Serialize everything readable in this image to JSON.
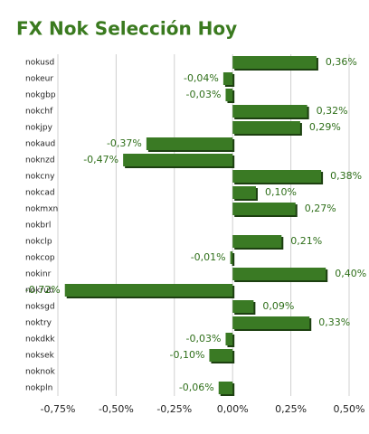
{
  "chart_data": {
    "type": "bar",
    "orientation": "horizontal",
    "title": "FX Nok Selección Hoy",
    "categories": [
      "nokusd",
      "nokeur",
      "nokgbp",
      "nokchf",
      "nokjpy",
      "nokaud",
      "noknzd",
      "nokcny",
      "nokcad",
      "nokmxn",
      "nokbrl",
      "nokclp",
      "nokcop",
      "nokinr",
      "nokrub",
      "noksgd",
      "noktry",
      "nokdkk",
      "noksek",
      "noknok",
      "nokpln"
    ],
    "values": [
      0.36,
      -0.04,
      -0.03,
      0.32,
      0.29,
      -0.37,
      -0.47,
      0.38,
      0.1,
      0.27,
      null,
      0.21,
      -0.01,
      0.4,
      -0.72,
      0.09,
      0.33,
      -0.03,
      -0.1,
      null,
      -0.06
    ],
    "value_labels": [
      "0,36%",
      "-0,04%",
      "-0,03%",
      "0,32%",
      "0,29%",
      "-0,37%",
      "-0,47%",
      "0,38%",
      "0,10%",
      "0,27%",
      null,
      "0,21%",
      "-0,01%",
      "0,40%",
      "-0,72%",
      "0,09%",
      "0,33%",
      "-0,03%",
      "-0,10%",
      null,
      "-0,06%"
    ],
    "color": "#3a7a24",
    "xlim": [
      -0.75,
      0.5
    ],
    "xticks": [
      {
        "value": -0.75,
        "label": "-0,75%"
      },
      {
        "value": -0.5,
        "label": "-0,50%"
      },
      {
        "value": -0.25,
        "label": "-0,25%"
      },
      {
        "value": 0,
        "label": "0,00%"
      },
      {
        "value": 0.25,
        "label": "0,25%"
      },
      {
        "value": 0.5,
        "label": "0,50%"
      }
    ],
    "grid": true
  }
}
